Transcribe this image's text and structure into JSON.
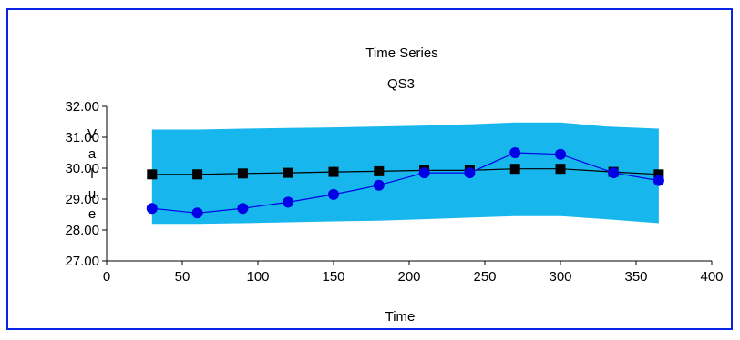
{
  "chart_data": {
    "type": "line",
    "title": "Time Series",
    "subtitle": "QS3",
    "xlabel": "Time",
    "ylabel": "Value",
    "xlim": [
      0,
      400
    ],
    "ylim": [
      27.0,
      32.0
    ],
    "x_ticks": [
      "0",
      "50",
      "100",
      "150",
      "200",
      "250",
      "300",
      "350",
      "400"
    ],
    "y_ticks": [
      "27.00",
      "28.00",
      "29.00",
      "30.00",
      "31.00",
      "32.00"
    ],
    "grid": false,
    "legend": "none",
    "band": {
      "color": "#17b7ee",
      "x": [
        30,
        60,
        90,
        120,
        150,
        180,
        210,
        240,
        270,
        300,
        330,
        365
      ],
      "upper": [
        31.25,
        31.25,
        31.28,
        31.3,
        31.32,
        31.35,
        31.38,
        31.42,
        31.48,
        31.48,
        31.35,
        31.28
      ],
      "lower": [
        28.2,
        28.2,
        28.22,
        28.25,
        28.28,
        28.3,
        28.35,
        28.4,
        28.45,
        28.45,
        28.35,
        28.22
      ]
    },
    "series": [
      {
        "color": "#000000",
        "marker": "square",
        "x": [
          30,
          60,
          90,
          120,
          150,
          180,
          210,
          240,
          270,
          300,
          335,
          365
        ],
        "values": [
          29.8,
          29.8,
          29.83,
          29.85,
          29.88,
          29.9,
          29.93,
          29.93,
          29.98,
          29.98,
          29.88,
          29.8
        ]
      },
      {
        "color": "#0000e6",
        "marker": "circle",
        "x": [
          30,
          60,
          90,
          120,
          150,
          180,
          210,
          240,
          270,
          300,
          335,
          365
        ],
        "values": [
          28.7,
          28.55,
          28.7,
          28.9,
          29.15,
          29.45,
          29.85,
          29.85,
          30.5,
          30.45,
          29.85,
          29.6
        ]
      }
    ]
  }
}
